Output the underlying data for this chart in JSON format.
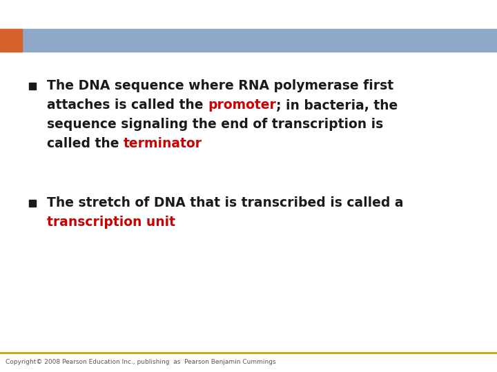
{
  "bg_color": "#ffffff",
  "header_bar_color": "#8fa8c8",
  "header_bar_left_color": "#d4622a",
  "bullet_square_color": "#1a1a1a",
  "red_color": "#cc0000",
  "footer_line_color": "#c8a800",
  "footer_text": "Copyright© 2008 Pearson Education Inc., publishing  as  Pearson Benjamin Cummings",
  "footer_text_color": "#555555",
  "bullet1_line1": "The DNA sequence where RNA polymerase first",
  "bullet1_line2_pre": "attaches is called the ",
  "bullet1_line2_highlight": "promoter",
  "bullet1_line2_post": "; in bacteria, the",
  "bullet1_line3": "sequence signaling the end of transcription is",
  "bullet1_line4_pre": "called the ",
  "bullet1_line4_highlight": "terminator",
  "bullet2_line1": "The stretch of DNA that is transcribed is called a",
  "bullet2_line2_highlight": "transcription unit",
  "text_color": "#1a1a1a",
  "font_size_bullet": 13.5,
  "font_size_footer": 6.5
}
